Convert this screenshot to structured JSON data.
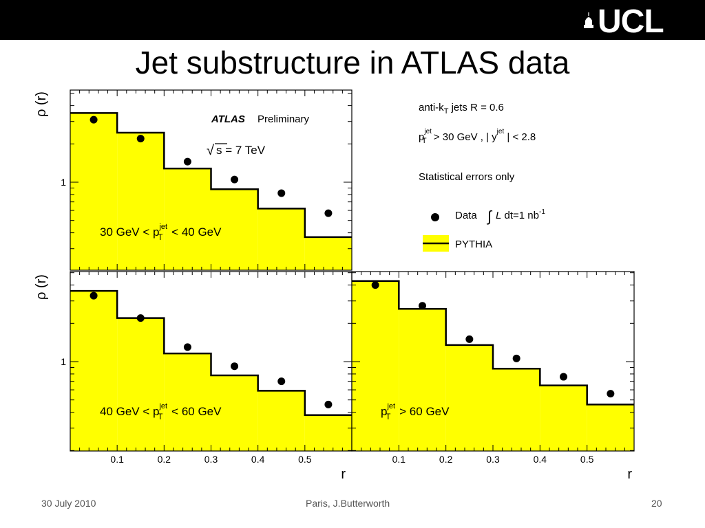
{
  "header": {
    "logo_text": "UCL",
    "title": "Jet substructure in ATLAS data"
  },
  "footer": {
    "date": "30 July 2010",
    "authors": "Paris, J.Butterworth",
    "page": "20"
  },
  "colors": {
    "topbar": "#000000",
    "histogram_fill": "#ffff00",
    "histogram_line": "#000000",
    "data_marker": "#000000"
  },
  "legend": {
    "atlas_label": "ATLAS",
    "preliminary": "Preliminary",
    "energy": "s = 7 TeV",
    "jets_pre": "anti-k",
    "jets_sub": "T",
    "jets_post": " jets R = 0.6",
    "cut_p": "p",
    "cut_sup": "jet",
    "cut_sub": "T",
    "cut_mid": " > 30 GeV , | y",
    "cut_ysup": "jet",
    "cut_end": " | < 2.8",
    "errors_note": "Statistical errors only",
    "data_label": "Data",
    "lumi_L": "L",
    "lumi_text": " dt=1 nb",
    "lumi_exp": "-1",
    "mc_label": "PYTHIA"
  },
  "chart_data": [
    {
      "type": "bar",
      "title": "30 GeV < p_T^jet < 40 GeV",
      "ylabel": "ρ (r)",
      "xlabel": "",
      "yscale": "log",
      "ytick_labels": [
        "1"
      ],
      "x_tick_labels": [],
      "bin_edges": [
        0.0,
        0.1,
        0.2,
        0.3,
        0.4,
        0.5,
        0.6
      ],
      "series": [
        {
          "name": "PYTHIA",
          "values": [
            3.5,
            2.45,
            1.28,
            0.88,
            0.62,
            0.37
          ]
        },
        {
          "name": "Data",
          "x": [
            0.05,
            0.15,
            0.25,
            0.35,
            0.45,
            0.55
          ],
          "values": [
            3.1,
            2.2,
            1.45,
            1.05,
            0.82,
            0.57
          ]
        }
      ],
      "label": {
        "pre": "30 GeV < p",
        "sup": "jet",
        "sub": "T",
        "post": " < 40 GeV"
      }
    },
    {
      "type": "bar",
      "title": "40 GeV < p_T^jet < 60 GeV",
      "ylabel": "ρ (r)",
      "xlabel": "r",
      "yscale": "log",
      "ytick_labels": [
        "1"
      ],
      "x_tick_labels": [
        "0.1",
        "0.2",
        "0.3",
        "0.4",
        "0.5"
      ],
      "bin_edges": [
        0.0,
        0.1,
        0.2,
        0.3,
        0.4,
        0.5,
        0.6
      ],
      "series": [
        {
          "name": "PYTHIA",
          "values": [
            3.6,
            2.2,
            1.16,
            0.78,
            0.59,
            0.38
          ]
        },
        {
          "name": "Data",
          "x": [
            0.05,
            0.15,
            0.25,
            0.35,
            0.45,
            0.55
          ],
          "values": [
            3.3,
            2.2,
            1.3,
            0.92,
            0.7,
            0.46
          ]
        }
      ],
      "label": {
        "pre": "40 GeV < p",
        "sup": "jet",
        "sub": "T",
        "post": " < 60 GeV"
      }
    },
    {
      "type": "bar",
      "title": "p_T^jet > 60 GeV",
      "ylabel": "",
      "xlabel": "r",
      "yscale": "log",
      "ytick_labels": [],
      "x_tick_labels": [
        "0.1",
        "0.2",
        "0.3",
        "0.4",
        "0.5"
      ],
      "bin_edges": [
        0.0,
        0.1,
        0.2,
        0.3,
        0.4,
        0.5,
        0.6
      ],
      "series": [
        {
          "name": "PYTHIA",
          "values": [
            4.3,
            2.6,
            1.35,
            0.88,
            0.65,
            0.46
          ]
        },
        {
          "name": "Data",
          "x": [
            0.05,
            0.15,
            0.25,
            0.35,
            0.45,
            0.55
          ],
          "values": [
            4.0,
            2.75,
            1.5,
            1.06,
            0.76,
            0.56
          ]
        }
      ],
      "label": {
        "pre": "p",
        "sup": "jet",
        "sub": "T",
        "post": " > 60 GeV"
      }
    }
  ]
}
